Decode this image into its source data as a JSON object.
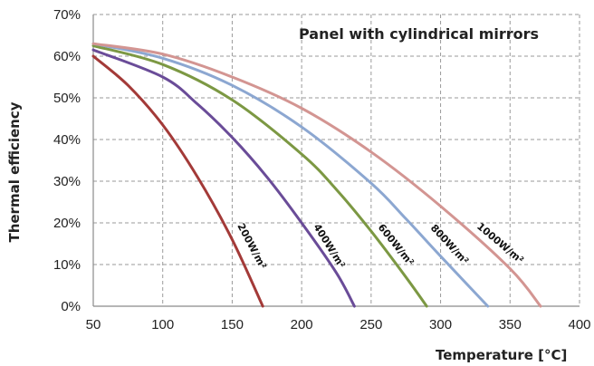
{
  "chart_data": {
    "type": "line",
    "title": "Panel with cylindrical mirrors",
    "xlabel": "Temperature [°C]",
    "ylabel": "Thermal efficiency",
    "xlim": [
      50,
      400
    ],
    "ylim": [
      0,
      70
    ],
    "x_ticks": [
      "50",
      "100",
      "150",
      "200",
      "250",
      "300",
      "350",
      "400"
    ],
    "y_ticks": [
      "0%",
      "10%",
      "20%",
      "30%",
      "40%",
      "50%",
      "60%",
      "70%"
    ],
    "grid": true,
    "legend": "inline-labels",
    "series": [
      {
        "name": "200W/m²",
        "color": "#a33a38",
        "x": [
          50,
          75,
          100,
          125,
          150,
          172
        ],
        "y": [
          60,
          53,
          43.5,
          31,
          16,
          0
        ]
      },
      {
        "name": "400W/m²",
        "color": "#6a4c98",
        "x": [
          50,
          100,
          125,
          150,
          175,
          200,
          225,
          238
        ],
        "y": [
          61.5,
          55,
          48.5,
          40.5,
          31,
          20,
          8,
          0
        ]
      },
      {
        "name": "600W/m²",
        "color": "#7c9843",
        "x": [
          50,
          100,
          150,
          200,
          225,
          250,
          275,
          290
        ],
        "y": [
          62.5,
          58,
          49.5,
          36.5,
          28,
          18,
          7,
          0
        ]
      },
      {
        "name": "800W/m²",
        "color": "#8ca7d1",
        "x": [
          50,
          100,
          150,
          200,
          250,
          275,
          300,
          334
        ],
        "y": [
          63,
          59.5,
          53,
          43,
          29.5,
          21,
          12,
          0
        ]
      },
      {
        "name": "1000W/m²",
        "color": "#d39592",
        "x": [
          50,
          100,
          150,
          200,
          250,
          300,
          350,
          372
        ],
        "y": [
          63,
          60.5,
          55,
          47.5,
          37,
          24,
          9,
          0
        ]
      }
    ]
  }
}
